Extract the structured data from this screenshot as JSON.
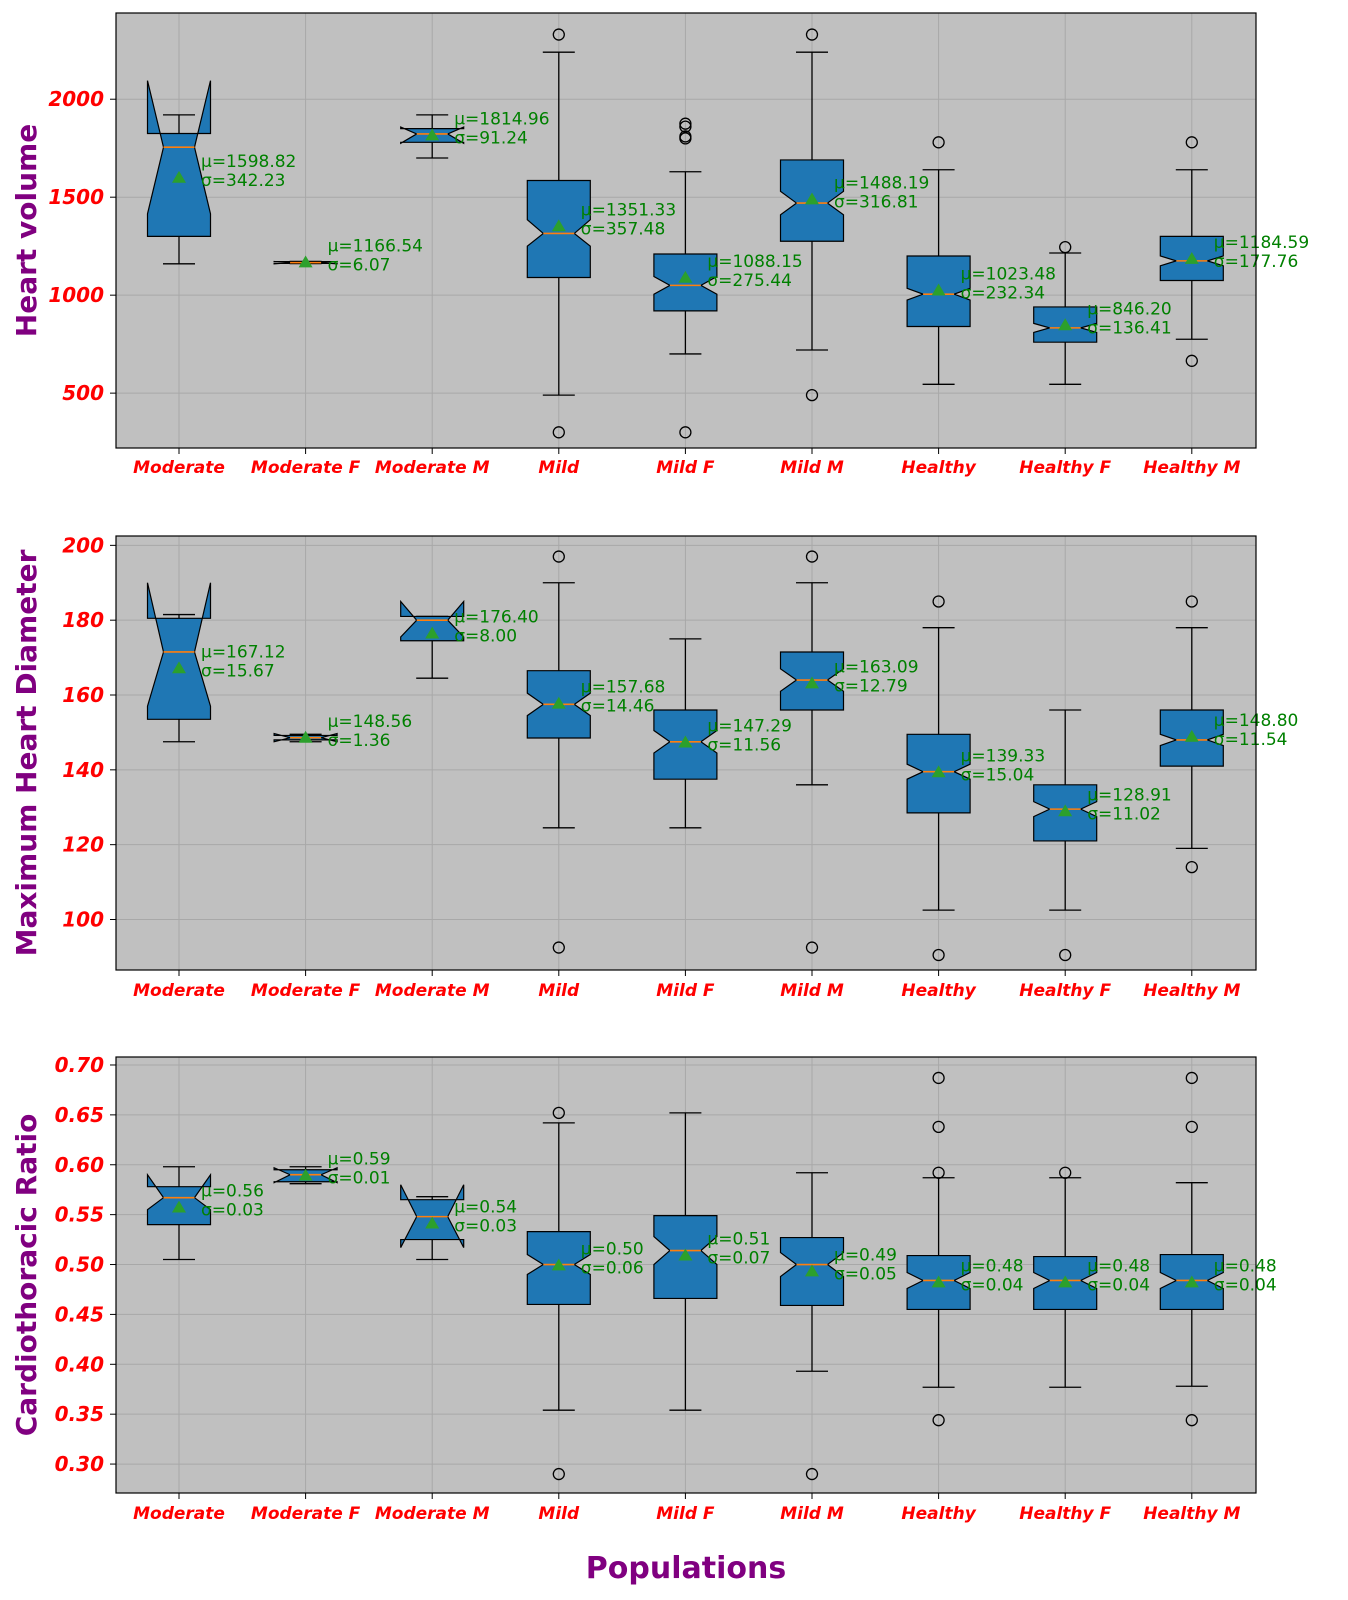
{
  "figure": {
    "xlabel": "Populations"
  },
  "chart_data": [
    {
      "type": "box",
      "ylabel": "Heart volume",
      "categories": [
        "Moderate",
        "Moderate F",
        "Moderate M",
        "Mild",
        "Mild F",
        "Mild M",
        "Healthy",
        "Healthy F",
        "Healthy M"
      ],
      "ylim": [
        220,
        2440
      ],
      "yticks": [
        500,
        1000,
        1500,
        2000
      ],
      "grid": true,
      "notched": true,
      "box_color": "#1f77b4",
      "median_color": "#ff7f0e",
      "mean_marker_color": "#2ca02c",
      "background": "#c0c0c0",
      "boxes": [
        {
          "label": "Moderate",
          "whislo": 1160,
          "q1": 1300,
          "med": 1755,
          "q3": 1825,
          "whishi": 1920,
          "notch_lo": 1415,
          "notch_hi": 2095,
          "mean": 1598.82,
          "fliers": [],
          "mean_text": "μ=1598.82",
          "std_text": "σ=342.23"
        },
        {
          "label": "Moderate F",
          "whislo": 1161,
          "q1": 1162,
          "med": 1166,
          "q3": 1171,
          "whishi": 1172,
          "notch_lo": 1160,
          "notch_hi": 1172,
          "mean": 1166.54,
          "fliers": [],
          "mean_text": "μ=1166.54",
          "std_text": "σ=6.07"
        },
        {
          "label": "Moderate M",
          "whislo": 1700,
          "q1": 1780,
          "med": 1823,
          "q3": 1850,
          "whishi": 1920,
          "notch_lo": 1775,
          "notch_hi": 1858,
          "mean": 1814.96,
          "fliers": [],
          "mean_text": "μ=1814.96",
          "std_text": "σ=91.24"
        },
        {
          "label": "Mild",
          "whislo": 490,
          "q1": 1090,
          "med": 1315,
          "q3": 1585,
          "whishi": 2240,
          "notch_lo": 1250,
          "notch_hi": 1385,
          "mean": 1351.33,
          "fliers": [
            300,
            2330
          ],
          "mean_text": "μ=1351.33",
          "std_text": "σ=357.48"
        },
        {
          "label": "Mild F",
          "whislo": 700,
          "q1": 920,
          "med": 1050,
          "q3": 1210,
          "whishi": 1630,
          "notch_lo": 1005,
          "notch_hi": 1095,
          "mean": 1088.15,
          "fliers": [
            300,
            1800,
            1810,
            1860,
            1875
          ],
          "mean_text": "μ=1088.15",
          "std_text": "σ=275.44"
        },
        {
          "label": "Mild M",
          "whislo": 720,
          "q1": 1275,
          "med": 1470,
          "q3": 1690,
          "whishi": 2240,
          "notch_lo": 1410,
          "notch_hi": 1530,
          "mean": 1488.19,
          "fliers": [
            490,
            2330
          ],
          "mean_text": "μ=1488.19",
          "std_text": "σ=316.81"
        },
        {
          "label": "Healthy",
          "whislo": 545,
          "q1": 840,
          "med": 1005,
          "q3": 1200,
          "whishi": 1640,
          "notch_lo": 975,
          "notch_hi": 1035,
          "mean": 1023.48,
          "fliers": [
            1780
          ],
          "mean_text": "μ=1023.48",
          "std_text": "σ=232.34"
        },
        {
          "label": "Healthy F",
          "whislo": 545,
          "q1": 760,
          "med": 833,
          "q3": 940,
          "whishi": 1215,
          "notch_lo": 810,
          "notch_hi": 856,
          "mean": 846.2,
          "fliers": [
            1245
          ],
          "mean_text": "μ=846.20",
          "std_text": "σ=136.41"
        },
        {
          "label": "Healthy M",
          "whislo": 775,
          "q1": 1075,
          "med": 1175,
          "q3": 1300,
          "whishi": 1640,
          "notch_lo": 1150,
          "notch_hi": 1200,
          "mean": 1184.59,
          "fliers": [
            665,
            1780
          ],
          "mean_text": "μ=1184.59",
          "std_text": "σ=177.76"
        }
      ]
    },
    {
      "type": "box",
      "ylabel": "Maximum Heart Diameter",
      "categories": [
        "Moderate",
        "Moderate F",
        "Moderate M",
        "Mild",
        "Mild F",
        "Mild M",
        "Healthy",
        "Healthy F",
        "Healthy M"
      ],
      "ylim": [
        86.5,
        202.5
      ],
      "yticks": [
        100,
        120,
        140,
        160,
        180,
        200
      ],
      "grid": true,
      "notched": true,
      "box_color": "#1f77b4",
      "median_color": "#ff7f0e",
      "mean_marker_color": "#2ca02c",
      "background": "#c0c0c0",
      "boxes": [
        {
          "label": "Moderate",
          "whislo": 147.5,
          "q1": 153.5,
          "med": 171.5,
          "q3": 180.5,
          "whishi": 181.5,
          "notch_lo": 157,
          "notch_hi": 190,
          "mean": 167.12,
          "fliers": [],
          "mean_text": "μ=167.12",
          "std_text": "σ=15.67"
        },
        {
          "label": "Moderate F",
          "whislo": 147.5,
          "q1": 148,
          "med": 148.6,
          "q3": 149.2,
          "whishi": 149.5,
          "notch_lo": 147.5,
          "notch_hi": 149.7,
          "mean": 148.56,
          "fliers": [],
          "mean_text": "μ=148.56",
          "std_text": "σ=1.36"
        },
        {
          "label": "Moderate M",
          "whislo": 164.5,
          "q1": 174.5,
          "med": 180,
          "q3": 181,
          "whishi": 181,
          "notch_lo": 175.5,
          "notch_hi": 185,
          "mean": 176.4,
          "fliers": [],
          "mean_text": "μ=176.40",
          "std_text": "σ=8.00"
        },
        {
          "label": "Mild",
          "whislo": 124.5,
          "q1": 148.5,
          "med": 157.5,
          "q3": 166.5,
          "whishi": 190,
          "notch_lo": 154.5,
          "notch_hi": 160.5,
          "mean": 157.68,
          "fliers": [
            92.5,
            197
          ],
          "mean_text": "μ=157.68",
          "std_text": "σ=14.46"
        },
        {
          "label": "Mild F",
          "whislo": 124.5,
          "q1": 137.5,
          "med": 147.5,
          "q3": 156,
          "whishi": 175,
          "notch_lo": 144.5,
          "notch_hi": 150.5,
          "mean": 147.29,
          "fliers": [],
          "mean_text": "μ=147.29",
          "std_text": "σ=11.56"
        },
        {
          "label": "Mild M",
          "whislo": 136,
          "q1": 156,
          "med": 164,
          "q3": 171.5,
          "whishi": 190,
          "notch_lo": 161,
          "notch_hi": 167,
          "mean": 163.09,
          "fliers": [
            92.5,
            197
          ],
          "mean_text": "μ=163.09",
          "std_text": "σ=12.79"
        },
        {
          "label": "Healthy",
          "whislo": 102.5,
          "q1": 128.5,
          "med": 139.5,
          "q3": 149.5,
          "whishi": 178,
          "notch_lo": 137.5,
          "notch_hi": 141.5,
          "mean": 139.33,
          "fliers": [
            90.5,
            185
          ],
          "mean_text": "μ=139.33",
          "std_text": "σ=15.04"
        },
        {
          "label": "Healthy F",
          "whislo": 102.5,
          "q1": 121,
          "med": 129.5,
          "q3": 136,
          "whishi": 156,
          "notch_lo": 127.5,
          "notch_hi": 131.5,
          "mean": 128.91,
          "fliers": [
            90.5
          ],
          "mean_text": "μ=128.91",
          "std_text": "σ=11.02"
        },
        {
          "label": "Healthy M",
          "whislo": 119,
          "q1": 141,
          "med": 148,
          "q3": 156,
          "whishi": 178,
          "notch_lo": 146.5,
          "notch_hi": 149.5,
          "mean": 148.8,
          "fliers": [
            114,
            185
          ],
          "mean_text": "μ=148.80",
          "std_text": "σ=11.54"
        }
      ]
    },
    {
      "type": "box",
      "ylabel": "Cardiothoracic Ratio",
      "categories": [
        "Moderate",
        "Moderate F",
        "Moderate M",
        "Mild",
        "Mild F",
        "Mild M",
        "Healthy",
        "Healthy F",
        "Healthy M"
      ],
      "ylim": [
        0.271,
        0.708
      ],
      "yticks": [
        0.3,
        0.35,
        0.4,
        0.45,
        0.5,
        0.55,
        0.6,
        0.65,
        0.7
      ],
      "ytick_labels": [
        "0.30",
        "0.35",
        "0.40",
        "0.45",
        "0.50",
        "0.55",
        "0.60",
        "0.65",
        "0.70"
      ],
      "grid": true,
      "notched": true,
      "box_color": "#1f77b4",
      "median_color": "#ff7f0e",
      "mean_marker_color": "#2ca02c",
      "background": "#c0c0c0",
      "boxes": [
        {
          "label": "Moderate",
          "whislo": 0.505,
          "q1": 0.54,
          "med": 0.567,
          "q3": 0.578,
          "whishi": 0.598,
          "notch_lo": 0.555,
          "notch_hi": 0.59,
          "mean": 0.557,
          "fliers": [],
          "mean_text": "μ=0.56",
          "std_text": "σ=0.03"
        },
        {
          "label": "Moderate F",
          "whislo": 0.581,
          "q1": 0.583,
          "med": 0.59,
          "q3": 0.595,
          "whishi": 0.598,
          "notch_lo": 0.582,
          "notch_hi": 0.597,
          "mean": 0.589,
          "fliers": [],
          "mean_text": "μ=0.59",
          "std_text": "σ=0.01"
        },
        {
          "label": "Moderate M",
          "whislo": 0.505,
          "q1": 0.525,
          "med": 0.548,
          "q3": 0.565,
          "whishi": 0.568,
          "notch_lo": 0.517,
          "notch_hi": 0.58,
          "mean": 0.541,
          "fliers": [],
          "mean_text": "μ=0.54",
          "std_text": "σ=0.03"
        },
        {
          "label": "Mild",
          "whislo": 0.354,
          "q1": 0.46,
          "med": 0.5,
          "q3": 0.533,
          "whishi": 0.642,
          "notch_lo": 0.49,
          "notch_hi": 0.51,
          "mean": 0.499,
          "fliers": [
            0.29,
            0.652
          ],
          "mean_text": "μ=0.50",
          "std_text": "σ=0.06"
        },
        {
          "label": "Mild F",
          "whislo": 0.354,
          "q1": 0.466,
          "med": 0.514,
          "q3": 0.549,
          "whishi": 0.652,
          "notch_lo": 0.5,
          "notch_hi": 0.528,
          "mean": 0.509,
          "fliers": [],
          "mean_text": "μ=0.51",
          "std_text": "σ=0.07"
        },
        {
          "label": "Mild M",
          "whislo": 0.393,
          "q1": 0.459,
          "med": 0.5,
          "q3": 0.527,
          "whishi": 0.592,
          "notch_lo": 0.488,
          "notch_hi": 0.512,
          "mean": 0.493,
          "fliers": [
            0.29
          ],
          "mean_text": "μ=0.49",
          "std_text": "σ=0.05"
        },
        {
          "label": "Healthy",
          "whislo": 0.377,
          "q1": 0.455,
          "med": 0.484,
          "q3": 0.509,
          "whishi": 0.587,
          "notch_lo": 0.476,
          "notch_hi": 0.492,
          "mean": 0.482,
          "fliers": [
            0.344,
            0.592,
            0.638,
            0.687
          ],
          "mean_text": "μ=0.48",
          "std_text": "σ=0.04"
        },
        {
          "label": "Healthy F",
          "whislo": 0.377,
          "q1": 0.455,
          "med": 0.484,
          "q3": 0.508,
          "whishi": 0.587,
          "notch_lo": 0.476,
          "notch_hi": 0.492,
          "mean": 0.482,
          "fliers": [
            0.592
          ],
          "mean_text": "μ=0.48",
          "std_text": "σ=0.04"
        },
        {
          "label": "Healthy M",
          "whislo": 0.378,
          "q1": 0.455,
          "med": 0.484,
          "q3": 0.51,
          "whishi": 0.582,
          "notch_lo": 0.476,
          "notch_hi": 0.492,
          "mean": 0.482,
          "fliers": [
            0.344,
            0.638,
            0.687
          ],
          "mean_text": "μ=0.48",
          "std_text": "σ=0.04"
        }
      ]
    }
  ]
}
